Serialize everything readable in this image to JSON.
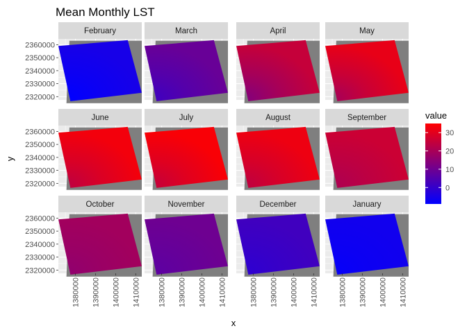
{
  "chart_data": {
    "type": "heatmap",
    "title": "Mean Monthly LST",
    "xlabel": "x",
    "ylabel": "y",
    "panels": [
      {
        "label": "February",
        "mean_value": -5,
        "cool_corner_value": -9
      },
      {
        "label": "March",
        "mean_value": 9,
        "cool_corner_value": 2
      },
      {
        "label": "April",
        "mean_value": 25,
        "cool_corner_value": 14
      },
      {
        "label": "May",
        "mean_value": 31,
        "cool_corner_value": 20
      },
      {
        "label": "June",
        "mean_value": 33,
        "cool_corner_value": 24
      },
      {
        "label": "July",
        "mean_value": 34,
        "cool_corner_value": 25
      },
      {
        "label": "August",
        "mean_value": 32,
        "cool_corner_value": 24
      },
      {
        "label": "September",
        "mean_value": 26,
        "cool_corner_value": 21
      },
      {
        "label": "October",
        "mean_value": 19,
        "cool_corner_value": 16
      },
      {
        "label": "November",
        "mean_value": 10,
        "cool_corner_value": 7
      },
      {
        "label": "December",
        "mean_value": 2,
        "cool_corner_value": -1
      },
      {
        "label": "January",
        "mean_value": -6,
        "cool_corner_value": -8
      }
    ],
    "x_ticks": [
      "1380000",
      "1390000",
      "1400000",
      "1410000"
    ],
    "y_ticks": [
      "2320000",
      "2330000",
      "2340000",
      "2350000",
      "2360000"
    ],
    "x_range": [
      1371500,
      1413000
    ],
    "y_range": [
      2317500,
      2364500
    ],
    "legend": {
      "title": "value",
      "ticks": [
        "0",
        "10",
        "20",
        "30"
      ],
      "range": [
        -9,
        35
      ],
      "low_color": "#0000FF",
      "high_color": "#FF0000",
      "position": "right"
    },
    "colors": {
      "strip": "#d9d9d9",
      "panel_background": "#ebebeb",
      "grid": "#ffffff",
      "nodata": "#7f7f7f"
    },
    "facet_layout": "3 rows x 4 columns",
    "grid": true
  }
}
